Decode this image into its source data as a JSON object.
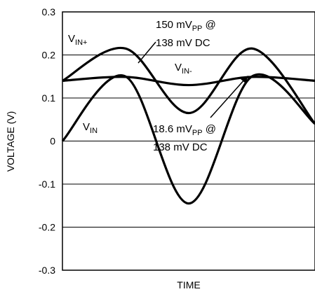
{
  "chart_data": {
    "type": "line",
    "xlabel": "TIME",
    "ylabel": "VOLTAGE (V)",
    "ylim": [
      -0.3,
      0.3
    ],
    "y_ticks": [
      "0.3",
      "0.2",
      "0.1",
      "0",
      "-0.1",
      "-0.2",
      "-0.3"
    ],
    "grid": "horizontal",
    "series": [
      {
        "name": "VIN+",
        "x": [
          0.0,
          0.25,
          0.5,
          0.75,
          1.0
        ],
        "y": [
          0.14,
          0.215,
          0.065,
          0.215,
          0.04
        ]
      },
      {
        "name": "VIN-",
        "x": [
          0.0,
          0.25,
          0.5,
          0.75,
          1.0
        ],
        "y": [
          0.14,
          0.149,
          0.13,
          0.149,
          0.14
        ]
      },
      {
        "name": "VIN",
        "x": [
          0.0,
          0.25,
          0.5,
          0.75,
          1.0
        ],
        "y": [
          0.0,
          0.15,
          -0.145,
          0.15,
          0.04
        ]
      }
    ],
    "annotations": {
      "vinplus_label_main": "V",
      "vinplus_label_sub": "IN+",
      "vinminus_label_main": "V",
      "vinminus_label_sub": "IN-",
      "vin_label_main": "V",
      "vin_label_sub": "IN",
      "ann1_line1_a": "150 mV",
      "ann1_line1_sub": "PP",
      "ann1_line1_b": " @",
      "ann1_line2": "138 mV DC",
      "ann2_line1_a": "18.6 mV",
      "ann2_line1_sub": "PP",
      "ann2_line1_b": " @",
      "ann2_line2": "138 mV DC"
    }
  }
}
